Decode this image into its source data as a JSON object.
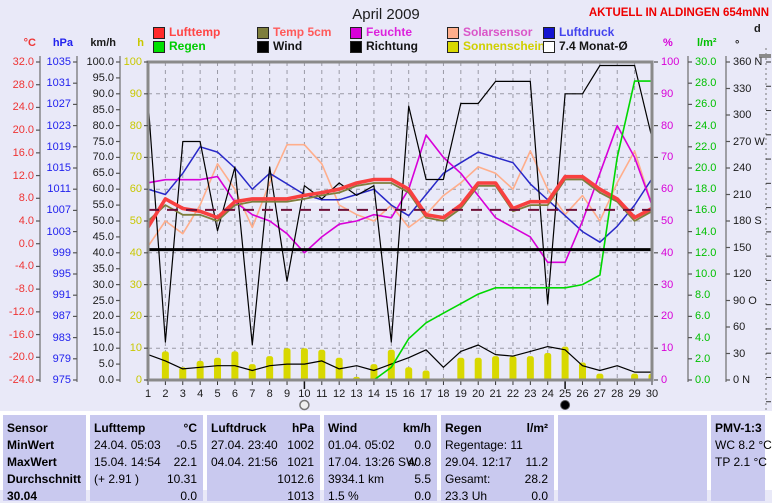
{
  "title": "April 2009",
  "status_right": "AKTUELL IN ALDINGEN 654mNN",
  "legend": {
    "rows": [
      [
        {
          "name": "lufttemp",
          "label": "Lufttemp",
          "box": "#FF2A2A",
          "text": "#FF4545"
        },
        {
          "name": "temp5cm",
          "label": "Temp 5cm",
          "box": "#7E7E3C",
          "text": "#FF5A5A"
        },
        {
          "name": "feuchte",
          "label": "Feuchte",
          "box": "#D800D8",
          "text": "#DD22DD"
        },
        {
          "name": "solarsensor",
          "label": "Solarsensor",
          "box": "#FFAE8C",
          "text": "#DA55C8"
        },
        {
          "name": "luftdruck",
          "label": "Luftdruck",
          "box": "#1414D0",
          "text": "#4444EE"
        }
      ],
      [
        {
          "name": "regen",
          "label": "Regen",
          "box": "#00E000",
          "text": "#00CC00"
        },
        {
          "name": "wind",
          "label": "Wind",
          "box": "#000000",
          "text": "#141414"
        },
        {
          "name": "richtung",
          "label": "Richtung",
          "box": "#000000",
          "text": "#141414"
        },
        {
          "name": "sonnenschein",
          "label": "Sonnenschein",
          "box": "#D8D800",
          "text": "#CFCF00"
        },
        {
          "name": "monatsdurchschnitt",
          "label": "7.4 Monat-Ø",
          "box": "#FFFFFF",
          "text": "#141414"
        }
      ]
    ]
  },
  "axes": [
    {
      "id": "temp",
      "unit": "°C",
      "side": "left",
      "color": "#EE3434",
      "range": [
        -24,
        32
      ],
      "ticks": [
        "32.0",
        "28.0",
        "24.0",
        "20.0",
        "16.0",
        "12.0",
        "8.0",
        "4.0",
        "0.0",
        "-4.0",
        "-8.0",
        "-12.0",
        "-16.0",
        "-20.0",
        "-24.0"
      ]
    },
    {
      "id": "hpa",
      "unit": "hPa",
      "side": "left",
      "color": "#2222EE",
      "range": [
        975,
        1035
      ],
      "ticks": [
        "1035",
        "1031",
        "1027",
        "1023",
        "1019",
        "1015",
        "1011",
        "1007",
        "1003",
        "999",
        "995",
        "991",
        "987",
        "983",
        "979",
        "975"
      ]
    },
    {
      "id": "kmh",
      "unit": "km/h",
      "side": "left",
      "color": "#1A1A1A",
      "range": [
        0,
        100
      ],
      "ticks": [
        "100.0",
        "95.0",
        "90.0",
        "85.0",
        "80.0",
        "75.0",
        "70.0",
        "65.0",
        "60.0",
        "55.0",
        "50.0",
        "45.0",
        "40.0",
        "35.0",
        "30.0",
        "25.0",
        "20.0",
        "15.0",
        "10.0",
        "5.0",
        "0.0"
      ]
    },
    {
      "id": "hrs",
      "unit": "h",
      "side": "left",
      "color": "#C8C800",
      "range": [
        0,
        100
      ],
      "ticks": [
        "100",
        "90",
        "80",
        "70",
        "60",
        "50",
        "40",
        "30",
        "20",
        "10",
        "0"
      ]
    },
    {
      "id": "pct",
      "unit": "%",
      "side": "right",
      "color": "#D800D8",
      "range": [
        0,
        100
      ],
      "ticks": [
        "100",
        "90",
        "80",
        "70",
        "60",
        "50",
        "40",
        "30",
        "20",
        "10",
        "0"
      ]
    },
    {
      "id": "lm2",
      "unit": "l/m²",
      "side": "right",
      "color": "#00C000",
      "range": [
        0,
        30
      ],
      "ticks": [
        "30.0",
        "28.0",
        "26.0",
        "24.0",
        "22.0",
        "20.0",
        "18.0",
        "16.0",
        "14.0",
        "12.0",
        "10.0",
        "8.0",
        "6.0",
        "4.0",
        "2.0",
        "0.0"
      ]
    },
    {
      "id": "deg",
      "unit": "°",
      "side": "right",
      "color": "#1A1A1A",
      "range": [
        0,
        360
      ],
      "ticks": [
        "360 N",
        "330",
        "300",
        "270 W",
        "240",
        "210",
        "180 S",
        "150",
        "120",
        "90 O",
        "60",
        "30",
        "0 N"
      ]
    },
    {
      "id": "day",
      "unit": "d",
      "side": "right",
      "color": "#1A1A1A",
      "range": [
        0,
        1
      ],
      "ticks": []
    }
  ],
  "x_axis": {
    "days": [
      "1",
      "2",
      "3",
      "4",
      "5",
      "6",
      "7",
      "8",
      "9",
      "10",
      "11",
      "12",
      "13",
      "14",
      "15",
      "16",
      "17",
      "18",
      "19",
      "20",
      "21",
      "22",
      "23",
      "24",
      "25",
      "26",
      "27",
      "28",
      "29",
      "30"
    ],
    "markers": [
      {
        "day": 10,
        "type": "full-moon"
      },
      {
        "day": 25,
        "type": "new-moon"
      }
    ]
  },
  "chart_data": {
    "type": "line",
    "title": "April 2009",
    "x": [
      1,
      2,
      3,
      4,
      5,
      6,
      7,
      8,
      9,
      10,
      11,
      12,
      13,
      14,
      15,
      16,
      17,
      18,
      19,
      20,
      21,
      22,
      23,
      24,
      25,
      26,
      27,
      28,
      29,
      30
    ],
    "series": [
      {
        "name": "solarsensor",
        "label": "Solarsensor",
        "axis": "pct",
        "color": "#FFAE8C",
        "width": 1.6,
        "values": [
          42,
          50,
          46,
          55,
          68,
          60,
          48,
          62,
          74,
          74,
          68,
          55,
          52,
          50,
          55,
          48,
          52,
          58,
          62,
          67,
          65,
          60,
          72,
          60,
          52,
          58,
          50,
          62,
          72,
          55
        ]
      },
      {
        "name": "luftdruck",
        "label": "Luftdruck",
        "axis": "hpa",
        "color": "#2828C8",
        "width": 1.5,
        "values": [
          1011,
          1010,
          1014,
          1019,
          1018,
          1015,
          1011,
          1014,
          1012,
          1010,
          1009,
          1009,
          1010,
          1011,
          1008,
          1006,
          1010,
          1014,
          1016,
          1018,
          1017,
          1016,
          1012,
          1009,
          1006,
          1003,
          1001,
          1004,
          1008,
          1013
        ]
      },
      {
        "name": "feuchte",
        "label": "Feuchte",
        "axis": "pct",
        "color": "#D800D8",
        "width": 1.6,
        "values": [
          62,
          63,
          63,
          63,
          64,
          56,
          52,
          50,
          46,
          40,
          45,
          49,
          50,
          52,
          51,
          60,
          77,
          70,
          65,
          58,
          51,
          48,
          45,
          37,
          37,
          50,
          65,
          80,
          70,
          55
        ]
      },
      {
        "name": "richtung",
        "label": "Richtung",
        "axis": "deg",
        "color": "#000000",
        "width": 1.2,
        "values": [
          317,
          43,
          270,
          270,
          169,
          241,
          40,
          241,
          112,
          220,
          205,
          223,
          209,
          220,
          43,
          310,
          227,
          227,
          313,
          313,
          338,
          338,
          338,
          86,
          324,
          324,
          356,
          356,
          356,
          274
        ]
      },
      {
        "name": "wind",
        "label": "Wind",
        "axis": "kmh",
        "color": "#000000",
        "width": 1.2,
        "values": [
          8,
          6,
          3.5,
          4,
          4.5,
          4.5,
          3,
          4.5,
          5,
          5,
          6,
          3.5,
          4.5,
          3,
          5,
          7,
          9.5,
          4,
          9,
          11,
          8,
          7.5,
          9,
          10.5,
          9.5,
          4.5,
          3,
          4.5,
          2.5,
          2.5
        ]
      },
      {
        "name": "temp5cm",
        "label": "Temp 5cm",
        "axis": "temp",
        "color": "#7E7E3C",
        "width": 1.8,
        "values": [
          4.0,
          6.8,
          5.1,
          5.1,
          4.0,
          6.8,
          7.4,
          7.4,
          7.4,
          7.9,
          8.5,
          9.0,
          10.2,
          10.7,
          10.7,
          9.0,
          4.6,
          4.0,
          6.2,
          10.2,
          10.2,
          5.7,
          6.8,
          6.8,
          11.3,
          11.3,
          9.0,
          7.4,
          4.0,
          5.7
        ]
      },
      {
        "name": "lufttemp",
        "label": "Lufttemp",
        "axis": "temp",
        "color": "#F84040",
        "width": 3.6,
        "values": [
          2.9,
          7.9,
          6.2,
          5.7,
          4.6,
          7.4,
          7.9,
          7.9,
          7.9,
          8.5,
          9.0,
          9.6,
          10.7,
          11.3,
          11.3,
          9.6,
          5.1,
          4.6,
          6.8,
          10.7,
          10.7,
          6.2,
          7.4,
          7.4,
          11.8,
          11.8,
          9.6,
          7.9,
          4.6,
          6.2
        ]
      },
      {
        "name": "regen",
        "label": "Regen",
        "axis": "lm2",
        "color": "#00D800",
        "width": 1.6,
        "values": [
          0,
          0,
          0,
          0,
          0,
          0,
          0,
          0,
          0,
          0,
          0,
          0,
          0,
          0,
          1.2,
          3.9,
          5.4,
          6.3,
          7.2,
          8.1,
          8.7,
          8.7,
          8.7,
          8.7,
          8.7,
          9.0,
          9.9,
          21.0,
          28.2,
          28.2
        ]
      }
    ],
    "bars": {
      "name": "sonnenschein",
      "label": "Sonnenschein",
      "axis": "hrs",
      "color": "#D8D800",
      "values": [
        0.5,
        9,
        4,
        6,
        7,
        9,
        5,
        7.5,
        10,
        10,
        9.5,
        7,
        1,
        5,
        9.5,
        4,
        3,
        0.5,
        7,
        7,
        7.5,
        7.5,
        7.5,
        8.5,
        10.5,
        5.5,
        2,
        0.3,
        2,
        2
      ]
    },
    "reference_lines": [
      {
        "name": "monat-avg-white",
        "label": "7.4 Monat-Ø",
        "axis": "hrs",
        "value": 56,
        "color": "#FFFFFF",
        "width": 1.5,
        "dash": "",
        "layer": "back"
      },
      {
        "name": "black-average-line",
        "axis": "hrs",
        "value": 41,
        "color": "#000000",
        "width": 3,
        "dash": "",
        "layer": "front"
      },
      {
        "name": "richtung-average-line",
        "axis": "hrs",
        "value": 53.5,
        "color": "#6E1038",
        "width": 2,
        "dash": "11,8",
        "layer": "front"
      }
    ],
    "legend_position": "top",
    "grid": true
  },
  "table": {
    "row_labels": [
      "Sensor",
      "MinWert",
      "MaxWert",
      "Durchschnitt",
      "30.04"
    ],
    "columns": [
      {
        "name": "lufttemp",
        "header": "Lufttemp",
        "unit": "°C",
        "rows": [
          [
            "24.04. 05:03",
            "-0.5"
          ],
          [
            "15.04. 14:54",
            "22.1"
          ],
          [
            "(+ 2.91 )",
            "10.31"
          ],
          [
            "",
            "0.0"
          ]
        ]
      },
      {
        "name": "luftdruck",
        "header": "Luftdruck",
        "unit": "hPa",
        "rows": [
          [
            "27.04. 23:40",
            "1002"
          ],
          [
            "04.04. 21:56",
            "1021"
          ],
          [
            "",
            "1012.6"
          ],
          [
            "",
            "1013"
          ]
        ]
      },
      {
        "name": "wind",
        "header": "Wind",
        "unit": "km/h",
        "rows": [
          [
            "01.04. 05:02",
            "0.0"
          ],
          [
            "17.04. 13:26 SW",
            "40.8"
          ],
          [
            "3934.1 km",
            "5.5"
          ],
          [
            "1.5 %",
            "0.0"
          ]
        ]
      },
      {
        "name": "regen",
        "header": "Regen",
        "unit": "l/m²",
        "rows": [
          [
            "Regentage: 11",
            ""
          ],
          [
            "29.04. 12:17",
            "11.2"
          ],
          [
            "Gesamt:",
            "28.2"
          ],
          [
            "23.3 Uh",
            "0.0"
          ]
        ]
      },
      {
        "name": "leer",
        "header": "",
        "unit": "",
        "rows": [
          [
            "",
            ""
          ],
          [
            "",
            ""
          ],
          [
            "",
            ""
          ],
          [
            "",
            ""
          ]
        ]
      },
      {
        "name": "pmv",
        "header": "PMV-1:3",
        "unit": "",
        "rows": [
          [
            "WC 8.2 °C",
            ""
          ],
          [
            "TP 2.1 °C",
            ""
          ],
          [
            "",
            ""
          ],
          [
            "",
            ""
          ]
        ]
      }
    ]
  }
}
